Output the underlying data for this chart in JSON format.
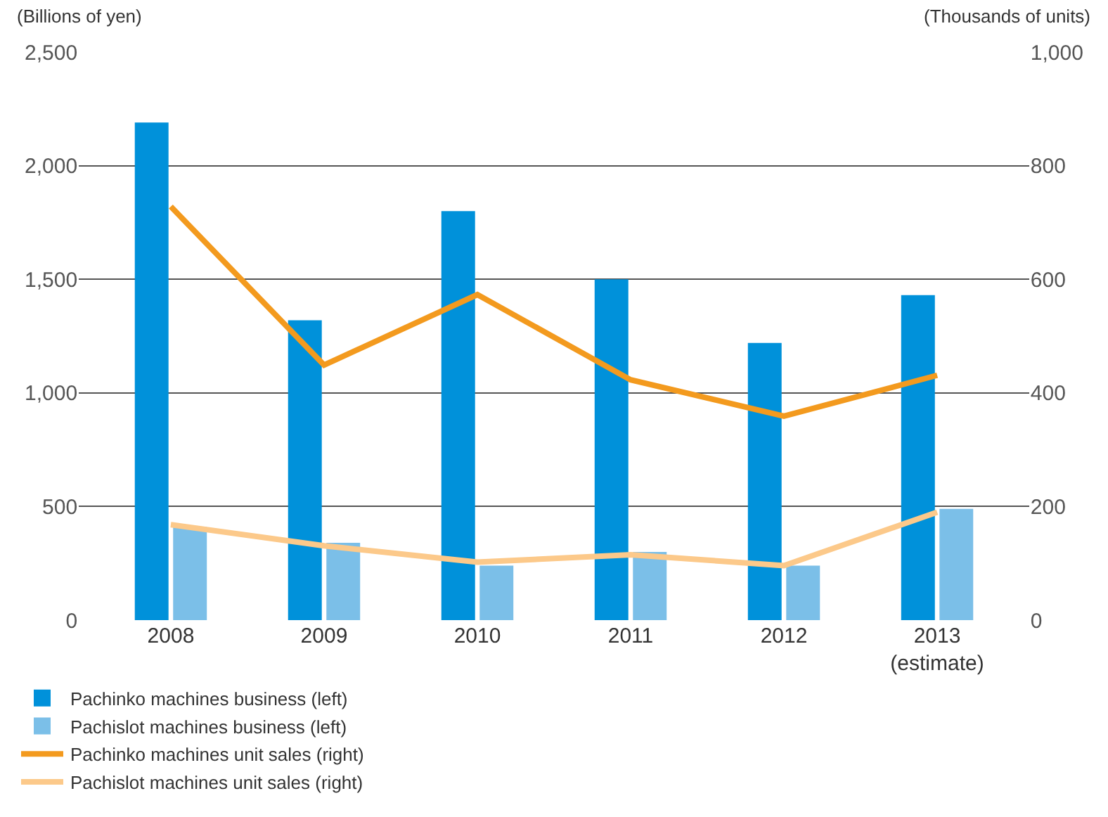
{
  "chart_data": {
    "type": "bar",
    "ylabel": "(Billions of yen)",
    "y2label": "(Thousands of units)",
    "categories": [
      "2008",
      "2009",
      "2010",
      "2011",
      "2012",
      "2013\n(estimate)"
    ],
    "series": [
      {
        "name": "Pachinko machines business (left)",
        "color": "#0091da",
        "values": [
          2190,
          1320,
          1800,
          1500,
          1220,
          1430
        ]
      },
      {
        "name": "Pachislot machines business (left)",
        "color": "#7bbfe8",
        "values": [
          410,
          340,
          240,
          300,
          240,
          490
        ]
      },
      {
        "name": "Pachinko machines unit sales (right)",
        "type": "line",
        "axis": "y2",
        "color": "#f39a1e",
        "values": [
          728,
          449,
          573,
          423,
          359,
          431
        ]
      },
      {
        "name": "Pachislot machines unit sales (right)",
        "type": "line",
        "axis": "y2",
        "color": "#fcc98a",
        "values": [
          168,
          131,
          102,
          115,
          96,
          190
        ]
      }
    ],
    "ylim": [
      0,
      2500
    ],
    "yticks": [
      0,
      {
        "value": 500,
        "label": "500"
      },
      {
        "value": 1000,
        "label": "1,000"
      },
      {
        "value": 1500,
        "label": "1,500"
      },
      {
        "value": 2000,
        "label": "2,000"
      },
      {
        "value": 2500,
        "label": "2,500"
      }
    ],
    "y2lim": [
      0,
      1000
    ],
    "y2ticks": [
      0,
      200,
      400,
      600,
      800,
      {
        "value": 1000,
        "label": "1,000"
      }
    ],
    "grid": "y",
    "legend": "bottom",
    "marker": "none",
    "line_style": "solid"
  }
}
